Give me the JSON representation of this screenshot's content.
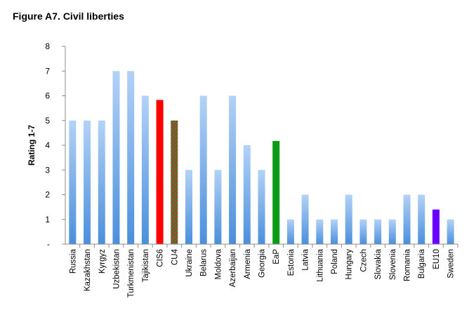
{
  "chart_data": {
    "type": "bar",
    "title": "Figure A7. Civil liberties",
    "ylabel": "Rating 1-7",
    "xlabel": "",
    "ylim": [
      0,
      8
    ],
    "yticks": [
      "-",
      "1",
      "2",
      "3",
      "4",
      "5",
      "6",
      "7",
      "8"
    ],
    "grid": false,
    "legend": "none",
    "categories": [
      "Russia",
      "Kazakhstan",
      "Kyrgyz",
      "Uzbekistan",
      "Turkmenistan",
      "Tajikistan",
      "CIS6",
      "CU4",
      "Ukraine",
      "Belarus",
      "Moldova",
      "Azerbaijan",
      "Armenia",
      "Georgia",
      "EaP",
      "Estonia",
      "Latvia",
      "Lithuania",
      "Poland",
      "Hungary",
      "Czech",
      "Slovakia",
      "Slovenia",
      "Romania",
      "Bulgaria",
      "EU10",
      "Sweden"
    ],
    "values": [
      5,
      5,
      5,
      7,
      7,
      6,
      5.83,
      5,
      3,
      6,
      3,
      6,
      4,
      3,
      4.17,
      1,
      2,
      1,
      1,
      2,
      1,
      1,
      1,
      2,
      2,
      1.4,
      1
    ],
    "bar_styles": [
      "gradient-blue",
      "gradient-blue",
      "gradient-blue",
      "gradient-blue",
      "gradient-blue",
      "gradient-blue",
      "solid-red",
      "hatched-red-green",
      "gradient-blue",
      "gradient-blue",
      "gradient-blue",
      "gradient-blue",
      "gradient-blue",
      "gradient-blue",
      "solid-green",
      "gradient-blue",
      "gradient-blue",
      "gradient-blue",
      "gradient-blue",
      "gradient-blue",
      "gradient-blue",
      "gradient-blue",
      "gradient-blue",
      "gradient-blue",
      "gradient-blue",
      "solid-purple",
      "gradient-blue"
    ],
    "colors": {
      "blue_top": "#b3d2f7",
      "blue_bottom": "#4a8fdc",
      "red": "#ff0000",
      "green": "#0a9c16",
      "hatch_red": "#c0302a",
      "hatch_green": "#2e8b2e",
      "purple": "#6a00ff",
      "axis": "#8c8c8c"
    }
  }
}
